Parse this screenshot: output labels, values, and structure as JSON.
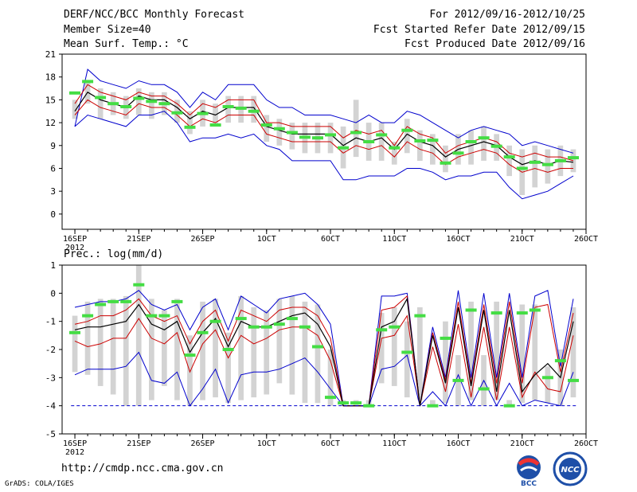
{
  "header": {
    "title": "DERF/NCC/BCC Monthly Forecast",
    "member_size": "Member Size=40",
    "variable": "Mean Surf. Temp.: °C",
    "forecast_range": "For 2012/09/16-2012/10/25",
    "fcst_started": "Fcst Started Refer Date 2012/09/15",
    "fcst_produced": "Fcst Produced Date 2012/09/16"
  },
  "footer": {
    "url": "http://cmdp.ncc.cma.gov.cn",
    "credit": "GrADS: COLA/IGES",
    "logo_bcc_text": "BCC",
    "logo_ncc_text": "NCC"
  },
  "colors": {
    "box": "#d3d3d3",
    "envelope": "#0000cd",
    "spread": "#cc0000",
    "mean": "#000000",
    "median": "#44dd44"
  },
  "chart_data": [
    {
      "type": "line",
      "title": "Mean Surf. Temp.: °C",
      "ylim": [
        -2,
        21
      ],
      "yticks": [
        0,
        3,
        6,
        9,
        12,
        15,
        18,
        21
      ],
      "xlim": [
        -1,
        40
      ],
      "xticks": [
        {
          "i": 0,
          "label": "16SEP",
          "sub": "2012"
        },
        {
          "i": 5,
          "label": "21SEP"
        },
        {
          "i": 10,
          "label": "26SEP"
        },
        {
          "i": 15,
          "label": "1OCT"
        },
        {
          "i": 20,
          "label": "6OCT"
        },
        {
          "i": 25,
          "label": "11OCT"
        },
        {
          "i": 30,
          "label": "16OCT"
        },
        {
          "i": 35,
          "label": "21OCT"
        },
        {
          "i": 40,
          "label": "26OCT"
        }
      ],
      "series": [
        {
          "name": "max",
          "values": [
            11.5,
            19,
            17.5,
            17,
            16.5,
            17.5,
            17,
            17,
            16,
            14,
            16,
            15,
            17,
            17,
            17,
            15,
            14,
            14,
            13,
            13,
            13,
            12.5,
            12,
            13,
            12,
            12,
            13.5,
            13,
            12,
            11,
            10,
            11,
            11.5,
            11,
            10.5,
            9,
            9.5,
            9,
            8.5,
            8
          ]
        },
        {
          "name": "upper",
          "values": [
            14.5,
            17,
            16,
            15.5,
            15,
            16,
            15.5,
            15.5,
            14.5,
            13,
            14.5,
            14,
            15,
            15,
            15,
            12,
            12,
            11.5,
            11.5,
            11.5,
            11.5,
            10,
            11,
            10.5,
            11,
            9,
            11.5,
            10.5,
            10,
            8,
            9,
            9.5,
            10,
            9.5,
            8,
            7.5,
            8,
            7.5,
            7.5,
            7
          ]
        },
        {
          "name": "mean",
          "values": [
            13.5,
            16,
            15,
            14.5,
            14,
            15.5,
            15,
            15,
            14,
            12.5,
            13.5,
            13,
            14,
            14,
            14,
            11.5,
            11,
            10.5,
            10.5,
            10.5,
            10.5,
            9,
            10,
            9.5,
            10,
            8.5,
            10.5,
            9.5,
            9,
            7.5,
            8.5,
            9,
            9.5,
            9,
            7.5,
            6.5,
            7,
            6.5,
            7,
            6.8
          ]
        },
        {
          "name": "lower",
          "values": [
            13,
            15,
            14,
            13.5,
            13,
            14.5,
            14,
            14,
            13,
            11.5,
            12.5,
            12,
            13,
            13,
            13,
            10.5,
            10,
            9.5,
            9.5,
            9.5,
            9.5,
            8,
            9,
            8.5,
            9,
            7.5,
            9.5,
            8.5,
            8,
            6.5,
            7.5,
            8,
            8.5,
            8,
            6.5,
            5.5,
            6,
            5.5,
            6,
            6
          ]
        },
        {
          "name": "min",
          "values": [
            11.5,
            13,
            12.5,
            12,
            11.5,
            13,
            13,
            13.5,
            12,
            9.5,
            10,
            10,
            10.5,
            10,
            10.5,
            9,
            8.5,
            7,
            7,
            7,
            7,
            4.5,
            4.5,
            5,
            5,
            5,
            6,
            6,
            5.5,
            4.5,
            5,
            5,
            5.5,
            5.5,
            3.5,
            2,
            2.5,
            3,
            4,
            5
          ]
        },
        {
          "name": "median",
          "values": [
            15.9,
            17.4,
            15.3,
            14.5,
            14.1,
            15.2,
            14.8,
            14.5,
            13.3,
            11.4,
            13.2,
            11.7,
            14.1,
            13.9,
            13.5,
            11.7,
            11.2,
            10.7,
            10.1,
            10.0,
            10.4,
            8.7,
            10.7,
            9.5,
            10.4,
            8.7,
            11.0,
            9.6,
            9.7,
            6.7,
            8.0,
            9.5,
            10.0,
            8.9,
            7.5,
            6.0,
            6.8,
            6.5,
            7.0,
            7.4
          ]
        },
        {
          "name": "box_top",
          "values": [
            15,
            17.5,
            16.5,
            16,
            15.5,
            16.5,
            16,
            16,
            15,
            13.5,
            15,
            14.5,
            15.5,
            15.5,
            15.5,
            13,
            12.5,
            12,
            12,
            12,
            12,
            11.5,
            15,
            12,
            12,
            9.5,
            12.5,
            11,
            10.5,
            9,
            10.5,
            11,
            11.5,
            10.5,
            9,
            8.5,
            9,
            8.5,
            9,
            8.5
          ]
        },
        {
          "name": "box_bottom",
          "values": [
            12.5,
            14.5,
            12.5,
            13,
            12.5,
            13,
            12.5,
            13,
            12,
            10.5,
            11.5,
            11.5,
            12,
            12,
            12,
            9.5,
            9,
            8.5,
            8,
            8,
            8,
            6,
            7.5,
            7,
            7,
            6.5,
            8,
            7,
            6.5,
            5.5,
            6.5,
            6.5,
            7,
            7,
            5,
            2.5,
            3.5,
            4,
            5,
            5.5
          ]
        }
      ]
    },
    {
      "type": "line",
      "title": "Prec.: log(mm/d)",
      "ylim": [
        -5,
        1
      ],
      "yticks": [
        -5,
        -4,
        -3,
        -2,
        -1,
        0,
        1
      ],
      "xlim": [
        -1,
        40
      ],
      "xticks": [
        {
          "i": 0,
          "label": "16SEP",
          "sub": "2012"
        },
        {
          "i": 5,
          "label": "21SEP"
        },
        {
          "i": 10,
          "label": "26SEP"
        },
        {
          "i": 15,
          "label": "1OCT"
        },
        {
          "i": 20,
          "label": "6OCT"
        },
        {
          "i": 25,
          "label": "11OCT"
        },
        {
          "i": 30,
          "label": "16OCT"
        },
        {
          "i": 35,
          "label": "21OCT"
        },
        {
          "i": 40,
          "label": "26OCT"
        }
      ],
      "series": [
        {
          "name": "max",
          "values": [
            -0.5,
            -0.4,
            -0.3,
            -0.3,
            -0.2,
            0.1,
            -0.4,
            -0.6,
            -0.4,
            -1.3,
            -0.5,
            -0.2,
            -1.3,
            -0.1,
            -0.4,
            -0.7,
            -0.2,
            -0.1,
            0,
            -0.4,
            -1.1,
            -4,
            -4,
            -4,
            -0.1,
            -0.1,
            0,
            -4,
            -1.2,
            -3,
            0.1,
            -3,
            0,
            -3,
            0,
            -3,
            -0.1,
            0.1,
            -2.6,
            -0.2
          ]
        },
        {
          "name": "upper",
          "values": [
            -1.1,
            -1,
            -0.8,
            -0.8,
            -0.6,
            -0.2,
            -0.8,
            -1,
            -0.8,
            -1.8,
            -1,
            -0.6,
            -1.7,
            -0.6,
            -0.8,
            -1,
            -0.6,
            -0.5,
            -0.5,
            -0.8,
            -1.6,
            -4,
            -4,
            -4,
            -0.6,
            -0.5,
            -0.1,
            -4,
            -1.4,
            -3.1,
            -0.3,
            -3.2,
            -0.4,
            -3.2,
            -0.3,
            -3.2,
            -0.5,
            -0.4,
            -2.8,
            -0.7
          ]
        },
        {
          "name": "mean",
          "values": [
            -1.3,
            -1.2,
            -1.2,
            -1.1,
            -1.0,
            -0.4,
            -1.1,
            -1.3,
            -1.0,
            -2.1,
            -1.4,
            -0.9,
            -1.9,
            -1.0,
            -1.2,
            -1.2,
            -1.0,
            -0.8,
            -0.7,
            -1.1,
            -1.9,
            -4,
            -4,
            -4,
            -1.2,
            -1.0,
            -0.2,
            -4,
            -1.5,
            -3.2,
            -0.5,
            -3.3,
            -0.6,
            -3.5,
            -0.6,
            -3.5,
            -2.9,
            -2.5,
            -3.0,
            -1.0
          ]
        },
        {
          "name": "lower",
          "values": [
            -1.7,
            -1.9,
            -1.8,
            -1.6,
            -1.6,
            -0.9,
            -1.6,
            -1.8,
            -1.4,
            -2.8,
            -1.8,
            -1.3,
            -2.3,
            -1.5,
            -1.8,
            -1.6,
            -1.3,
            -1.2,
            -1.2,
            -1.5,
            -2.4,
            -4,
            -4,
            -4,
            -1.6,
            -1.5,
            -0.8,
            -4,
            -1.9,
            -3.5,
            -1.1,
            -3.7,
            -1.2,
            -3.8,
            -1.2,
            -3.7,
            -2.8,
            -3.4,
            -3.5,
            -1.5
          ]
        },
        {
          "name": "min",
          "values": [
            -2.9,
            -2.7,
            -2.7,
            -2.7,
            -2.6,
            -2.1,
            -3.1,
            -3.2,
            -2.8,
            -4,
            -3.4,
            -2.7,
            -3.9,
            -2.9,
            -2.8,
            -2.8,
            -2.7,
            -2.5,
            -2.3,
            -2.8,
            -3.4,
            -4,
            -4,
            -4,
            -2.7,
            -2.6,
            -2.2,
            -4,
            -3.5,
            -4,
            -2.9,
            -4,
            -3.1,
            -4,
            -3.2,
            -4,
            -3.8,
            -3.9,
            -4,
            -2.8
          ]
        },
        {
          "name": "median",
          "values": [
            -1.4,
            -0.8,
            -0.4,
            -0.3,
            -0.3,
            0.3,
            -0.8,
            -0.8,
            -0.3,
            -2.2,
            -1.4,
            -1.0,
            -2.0,
            -0.9,
            -1.2,
            -1.2,
            -1.1,
            -0.9,
            -1.2,
            -1.9,
            -3.7,
            -3.9,
            -3.9,
            -4,
            -1.3,
            -1.2,
            -2.1,
            -0.8,
            -4,
            -1.6,
            -3.1,
            -0.6,
            -3.4,
            -0.7,
            -4,
            -0.7,
            -0.6,
            -3.0,
            -2.4,
            -3.1
          ]
        },
        {
          "name": "box_top",
          "values": [
            -0.8,
            -0.3,
            -0.2,
            -0.2,
            -0.1,
            1.0,
            -0.2,
            -0.6,
            -0.2,
            -1.5,
            -0.3,
            -0.2,
            -1.4,
            -0.1,
            -0.5,
            -0.6,
            -0.2,
            -0.1,
            -0.3,
            -0.4,
            -2.0,
            -3.8,
            -3.8,
            -3.8,
            -0.7,
            -0.5,
            -1.0,
            -0.5,
            -3.8,
            -1.0,
            -2.2,
            -0.3,
            -2.2,
            -0.3,
            -3.8,
            -0.4,
            -0.4,
            -2.6,
            -2.0,
            -0.5
          ]
        },
        {
          "name": "box_bottom",
          "values": [
            -2.8,
            -2.9,
            -3.3,
            -3.6,
            -4,
            -4,
            -3.8,
            -3.3,
            -3.8,
            -4,
            -3.8,
            -3.7,
            -3.9,
            -3.8,
            -3.7,
            -3.6,
            -3.2,
            -3.6,
            -3.9,
            -3.9,
            -4,
            -4,
            -4,
            -4,
            -3.2,
            -3.3,
            -3.7,
            -3.8,
            -4,
            -3.9,
            -4,
            -3.8,
            -4,
            -3.8,
            -4,
            -3.9,
            -3.8,
            -3.9,
            -4,
            -3.7
          ]
        }
      ]
    }
  ]
}
